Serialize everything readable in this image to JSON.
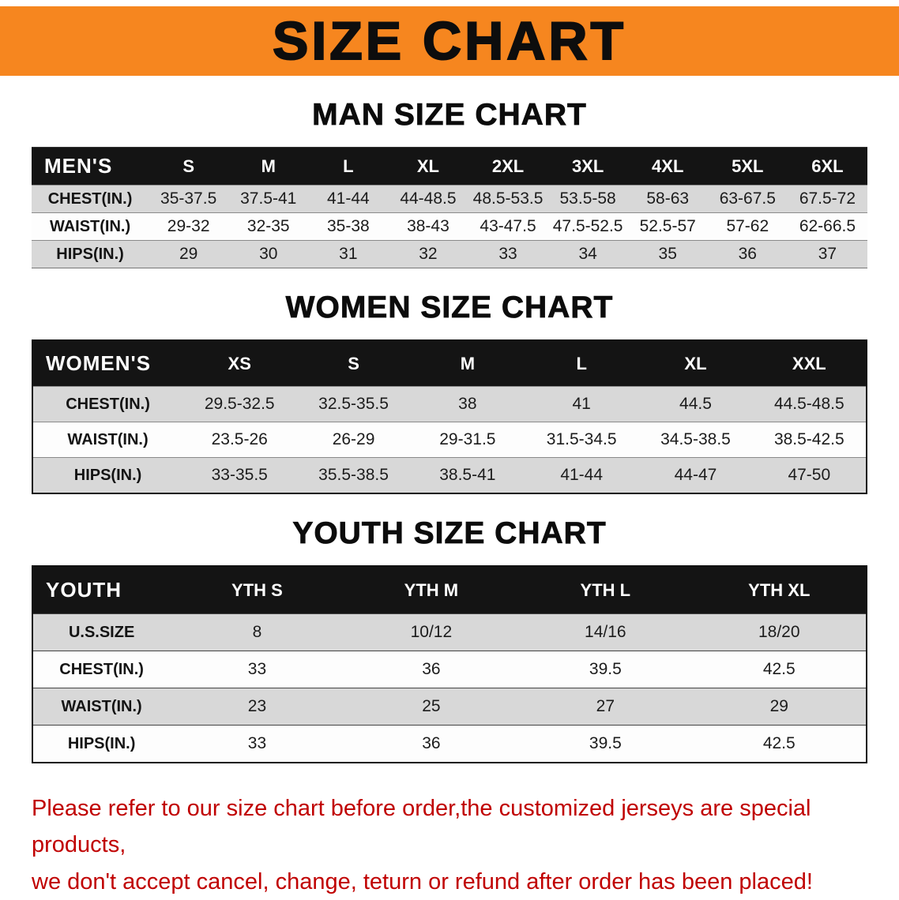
{
  "banner": {
    "title": "SIZE CHART"
  },
  "colors": {
    "banner_bg": "#F6861F",
    "header_bg": "#141414",
    "row_alt_bg": "#D8D8D8",
    "disclaimer_red": "#C00000"
  },
  "sections": [
    {
      "id": "men",
      "heading": "MAN SIZE CHART",
      "table": {
        "header": [
          "MEN'S",
          "S",
          "M",
          "L",
          "XL",
          "2XL",
          "3XL",
          "4XL",
          "5XL",
          "6XL"
        ],
        "rows": [
          [
            "CHEST(IN.)",
            "35-37.5",
            "37.5-41",
            "41-44",
            "44-48.5",
            "48.5-53.5",
            "53.5-58",
            "58-63",
            "63-67.5",
            "67.5-72"
          ],
          [
            "WAIST(IN.)",
            "29-32",
            "32-35",
            "35-38",
            "38-43",
            "43-47.5",
            "47.5-52.5",
            "52.5-57",
            "57-62",
            "62-66.5"
          ],
          [
            "HIPS(IN.)",
            "29",
            "30",
            "31",
            "32",
            "33",
            "34",
            "35",
            "36",
            "37"
          ]
        ]
      }
    },
    {
      "id": "women",
      "heading": "WOMEN SIZE CHART",
      "table": {
        "header": [
          "WOMEN'S",
          "XS",
          "S",
          "M",
          "L",
          "XL",
          "XXL"
        ],
        "rows": [
          [
            "CHEST(IN.)",
            "29.5-32.5",
            "32.5-35.5",
            "38",
            "41",
            "44.5",
            "44.5-48.5"
          ],
          [
            "WAIST(IN.)",
            "23.5-26",
            "26-29",
            "29-31.5",
            "31.5-34.5",
            "34.5-38.5",
            "38.5-42.5"
          ],
          [
            "HIPS(IN.)",
            "33-35.5",
            "35.5-38.5",
            "38.5-41",
            "41-44",
            "44-47",
            "47-50"
          ]
        ]
      }
    },
    {
      "id": "youth",
      "heading": "YOUTH SIZE CHART",
      "table": {
        "header": [
          "YOUTH",
          "YTH S",
          "YTH M",
          "YTH L",
          "YTH XL"
        ],
        "rows": [
          [
            "U.S.SIZE",
            "8",
            "10/12",
            "14/16",
            "18/20"
          ],
          [
            "CHEST(IN.)",
            "33",
            "36",
            "39.5",
            "42.5"
          ],
          [
            "WAIST(IN.)",
            "23",
            "25",
            "27",
            "29"
          ],
          [
            "HIPS(IN.)",
            "33",
            "36",
            "39.5",
            "42.5"
          ]
        ]
      }
    }
  ],
  "disclaimer": {
    "line1": "Please refer to our size chart before order,the customized jerseys are special products,",
    "line2": "we don't accept cancel, change, teturn or refund after order has been placed!"
  }
}
